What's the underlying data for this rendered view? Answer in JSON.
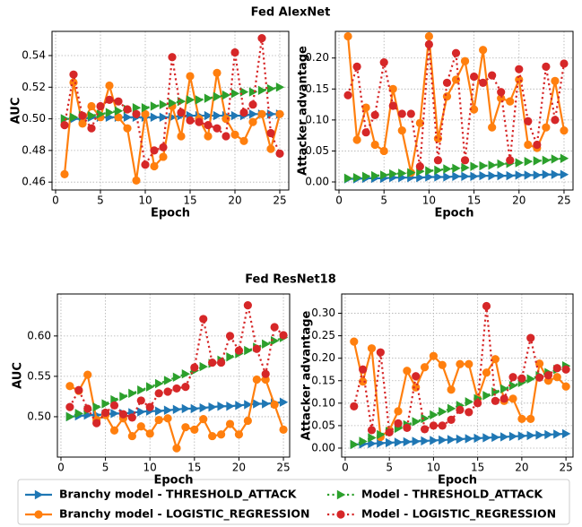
{
  "figure_titles": [
    "Fed AlexNet",
    "Fed ResNet18"
  ],
  "chart_data": [
    {
      "type": "line",
      "xlabel": "Epoch",
      "ylabel": "AUC",
      "x": [
        1,
        2,
        3,
        4,
        5,
        6,
        7,
        8,
        9,
        10,
        11,
        12,
        13,
        14,
        15,
        16,
        17,
        18,
        19,
        20,
        21,
        22,
        23,
        24,
        25
      ],
      "xlim": [
        -0.4,
        26
      ],
      "xticks": [
        0,
        5,
        10,
        15,
        20,
        25
      ],
      "ylim": [
        0.455,
        0.5553
      ],
      "yticks": [
        0.46,
        0.48,
        {
          "value": 0.5,
          "label": "0.50"
        },
        0.52,
        0.54
      ],
      "grid": true,
      "series": [
        {
          "name": "Branchy model - THRESHOLD_ATTACK",
          "color": "#1f77b4",
          "linestyle": "solid",
          "marker": "triangle-right",
          "values": [
            0.5,
            0.5,
            0.5,
            0.501,
            0.501,
            0.501,
            0.501,
            0.501,
            0.501,
            0.501,
            0.501,
            0.501,
            0.501,
            0.502,
            0.502,
            0.502,
            0.502,
            0.502,
            0.502,
            0.502,
            0.502,
            0.503,
            0.503,
            0.503,
            0.503
          ]
        },
        {
          "name": "Branchy model - LOGISTIC_REGRESSION",
          "color": "#ff7f0e",
          "linestyle": "solid",
          "marker": "circle",
          "values": [
            0.465,
            0.523,
            0.497,
            0.508,
            0.501,
            0.521,
            0.501,
            0.494,
            0.461,
            0.503,
            0.47,
            0.476,
            0.508,
            0.489,
            0.527,
            0.5,
            0.489,
            0.529,
            0.5,
            0.49,
            0.486,
            0.498,
            0.503,
            0.481,
            0.503
          ]
        },
        {
          "name": "Model - THRESHOLD_ATTACK",
          "color": "#2ca02c",
          "linestyle": "dotted",
          "marker": "triangle-right",
          "values": [
            0.5,
            0.501,
            0.502,
            0.502,
            0.503,
            0.504,
            0.505,
            0.506,
            0.507,
            0.507,
            0.508,
            0.509,
            0.51,
            0.511,
            0.512,
            0.512,
            0.513,
            0.514,
            0.515,
            0.516,
            0.517,
            0.517,
            0.518,
            0.519,
            0.52
          ]
        },
        {
          "name": "Model - LOGISTIC_REGRESSION",
          "color": "#d62728",
          "linestyle": "dotted",
          "marker": "circle",
          "values": [
            0.496,
            0.528,
            0.502,
            0.494,
            0.508,
            0.512,
            0.511,
            0.506,
            0.503,
            0.471,
            0.48,
            0.482,
            0.539,
            0.504,
            0.499,
            0.498,
            0.496,
            0.494,
            0.489,
            0.542,
            0.504,
            0.509,
            0.551,
            0.491,
            0.478
          ]
        }
      ]
    },
    {
      "type": "line",
      "xlabel": "Epoch",
      "ylabel": "Attacker advantage",
      "x": [
        1,
        2,
        3,
        4,
        5,
        6,
        7,
        8,
        9,
        10,
        11,
        12,
        13,
        14,
        15,
        16,
        17,
        18,
        19,
        20,
        21,
        22,
        23,
        24,
        25
      ],
      "xlim": [
        -0.4,
        26
      ],
      "xticks": [
        0,
        5,
        10,
        15,
        20,
        25
      ],
      "ylim": [
        -0.013,
        0.243
      ],
      "yticks": [
        {
          "value": 0,
          "label": "0.00"
        },
        0.05,
        {
          "value": 0.1,
          "label": "0.10"
        },
        0.15,
        {
          "value": 0.2,
          "label": "0.20"
        }
      ],
      "grid": true,
      "series": [
        {
          "name": "Branchy model - THRESHOLD_ATTACK",
          "color": "#1f77b4",
          "linestyle": "solid",
          "marker": "triangle-right",
          "values": [
            0.005,
            0.005,
            0.006,
            0.006,
            0.006,
            0.007,
            0.007,
            0.007,
            0.007,
            0.008,
            0.008,
            0.008,
            0.009,
            0.009,
            0.009,
            0.01,
            0.01,
            0.01,
            0.01,
            0.011,
            0.011,
            0.011,
            0.012,
            0.012,
            0.012
          ]
        },
        {
          "name": "Branchy model - LOGISTIC_REGRESSION",
          "color": "#ff7f0e",
          "linestyle": "solid",
          "marker": "circle",
          "values": [
            0.235,
            0.068,
            0.12,
            0.06,
            0.05,
            0.15,
            0.083,
            0.015,
            0.095,
            0.235,
            0.07,
            0.138,
            0.165,
            0.195,
            0.117,
            0.213,
            0.088,
            0.135,
            0.13,
            0.165,
            0.06,
            0.055,
            0.088,
            0.163,
            0.083
          ]
        },
        {
          "name": "Model - THRESHOLD_ATTACK",
          "color": "#2ca02c",
          "linestyle": "dotted",
          "marker": "triangle-right",
          "values": [
            0.006,
            0.007,
            0.009,
            0.01,
            0.011,
            0.013,
            0.014,
            0.015,
            0.017,
            0.018,
            0.019,
            0.021,
            0.022,
            0.023,
            0.025,
            0.026,
            0.027,
            0.029,
            0.03,
            0.031,
            0.033,
            0.034,
            0.035,
            0.037,
            0.038
          ]
        },
        {
          "name": "Model - LOGISTIC_REGRESSION",
          "color": "#d62728",
          "linestyle": "dotted",
          "marker": "circle",
          "values": [
            0.14,
            0.186,
            0.08,
            0.108,
            0.193,
            0.123,
            0.11,
            0.11,
            0.025,
            0.222,
            0.035,
            0.16,
            0.208,
            0.035,
            0.17,
            0.16,
            0.172,
            0.145,
            0.035,
            0.182,
            0.098,
            0.06,
            0.186,
            0.1,
            0.191
          ]
        }
      ]
    },
    {
      "type": "line",
      "xlabel": "Epoch",
      "ylabel": "AUC",
      "x": [
        1,
        2,
        3,
        4,
        5,
        6,
        7,
        8,
        9,
        10,
        11,
        12,
        13,
        14,
        15,
        16,
        17,
        18,
        19,
        20,
        21,
        22,
        23,
        24,
        25
      ],
      "xlim": [
        -0.4,
        25.7
      ],
      "xticks": [
        0,
        5,
        10,
        15,
        20,
        25
      ],
      "ylim": [
        0.45,
        0.652
      ],
      "yticks": [
        {
          "value": 0.5,
          "label": "0.50"
        },
        0.55,
        {
          "value": 0.6,
          "label": "0.60"
        }
      ],
      "grid": true,
      "series": [
        {
          "name": "Branchy model - THRESHOLD_ATTACK",
          "color": "#1f77b4",
          "linestyle": "solid",
          "marker": "triangle-right",
          "values": [
            0.5,
            0.501,
            0.502,
            0.502,
            0.503,
            0.504,
            0.504,
            0.505,
            0.506,
            0.507,
            0.507,
            0.508,
            0.509,
            0.51,
            0.51,
            0.511,
            0.512,
            0.513,
            0.513,
            0.514,
            0.515,
            0.516,
            0.516,
            0.517,
            0.518
          ]
        },
        {
          "name": "Branchy model - LOGISTIC_REGRESSION",
          "color": "#ff7f0e",
          "linestyle": "solid",
          "marker": "circle",
          "values": [
            0.538,
            0.532,
            0.552,
            0.496,
            0.502,
            0.483,
            0.498,
            0.476,
            0.488,
            0.479,
            0.496,
            0.498,
            0.461,
            0.487,
            0.484,
            0.497,
            0.476,
            0.478,
            0.491,
            0.478,
            0.495,
            0.546,
            0.546,
            0.515,
            0.484
          ]
        },
        {
          "name": "Model - THRESHOLD_ATTACK",
          "color": "#2ca02c",
          "linestyle": "dotted",
          "marker": "triangle-right",
          "values": [
            0.5,
            0.504,
            0.508,
            0.512,
            0.516,
            0.521,
            0.525,
            0.529,
            0.533,
            0.537,
            0.541,
            0.545,
            0.549,
            0.553,
            0.557,
            0.562,
            0.566,
            0.57,
            0.574,
            0.578,
            0.582,
            0.586,
            0.59,
            0.594,
            0.598
          ]
        },
        {
          "name": "Model - LOGISTIC_REGRESSION",
          "color": "#d62728",
          "linestyle": "dotted",
          "marker": "circle",
          "values": [
            0.512,
            0.533,
            0.51,
            0.492,
            0.505,
            0.514,
            0.503,
            0.499,
            0.52,
            0.512,
            0.529,
            0.531,
            0.535,
            0.537,
            0.561,
            0.621,
            0.567,
            0.567,
            0.6,
            0.582,
            0.638,
            0.584,
            0.553,
            0.611,
            0.601
          ]
        }
      ]
    },
    {
      "type": "line",
      "xlabel": "Epoch",
      "ylabel": "Attacker advantage",
      "x": [
        1,
        2,
        3,
        4,
        5,
        6,
        7,
        8,
        9,
        10,
        11,
        12,
        13,
        14,
        15,
        16,
        17,
        18,
        19,
        20,
        21,
        22,
        23,
        24,
        25
      ],
      "xlim": [
        -0.4,
        25.8
      ],
      "xticks": [
        0,
        5,
        10,
        15,
        20,
        25
      ],
      "ylim": [
        -0.02,
        0.343
      ],
      "yticks": [
        {
          "value": 0,
          "label": "0.00"
        },
        0.05,
        {
          "value": 0.1,
          "label": "0.10"
        },
        0.15,
        {
          "value": 0.2,
          "label": "0.20"
        },
        0.25,
        {
          "value": 0.3,
          "label": "0.30"
        }
      ],
      "grid": true,
      "series": [
        {
          "name": "Branchy model - THRESHOLD_ATTACK",
          "color": "#1f77b4",
          "linestyle": "solid",
          "marker": "triangle-right",
          "values": [
            0.008,
            0.009,
            0.01,
            0.011,
            0.012,
            0.013,
            0.014,
            0.015,
            0.016,
            0.017,
            0.018,
            0.019,
            0.02,
            0.021,
            0.022,
            0.023,
            0.024,
            0.025,
            0.026,
            0.027,
            0.028,
            0.029,
            0.03,
            0.031,
            0.032
          ]
        },
        {
          "name": "Branchy model - LOGISTIC_REGRESSION",
          "color": "#ff7f0e",
          "linestyle": "solid",
          "marker": "circle",
          "values": [
            0.237,
            0.148,
            0.222,
            0.025,
            0.04,
            0.082,
            0.172,
            0.135,
            0.18,
            0.205,
            0.185,
            0.13,
            0.187,
            0.187,
            0.11,
            0.168,
            0.198,
            0.105,
            0.11,
            0.065,
            0.065,
            0.188,
            0.15,
            0.158,
            0.137
          ]
        },
        {
          "name": "Model - THRESHOLD_ATTACK",
          "color": "#2ca02c",
          "linestyle": "dotted",
          "marker": "triangle-right",
          "values": [
            0.008,
            0.015,
            0.023,
            0.03,
            0.037,
            0.044,
            0.052,
            0.059,
            0.066,
            0.074,
            0.081,
            0.088,
            0.095,
            0.103,
            0.11,
            0.117,
            0.125,
            0.132,
            0.139,
            0.146,
            0.154,
            0.161,
            0.168,
            0.175,
            0.183
          ]
        },
        {
          "name": "Model - LOGISTIC_REGRESSION",
          "color": "#d62728",
          "linestyle": "dotted",
          "marker": "circle",
          "values": [
            0.093,
            0.175,
            0.04,
            0.213,
            0.035,
            0.055,
            0.045,
            0.16,
            0.042,
            0.05,
            0.05,
            0.063,
            0.085,
            0.08,
            0.1,
            0.316,
            0.105,
            0.11,
            0.158,
            0.155,
            0.245,
            0.157,
            0.162,
            0.178,
            0.175
          ]
        }
      ]
    }
  ]
}
